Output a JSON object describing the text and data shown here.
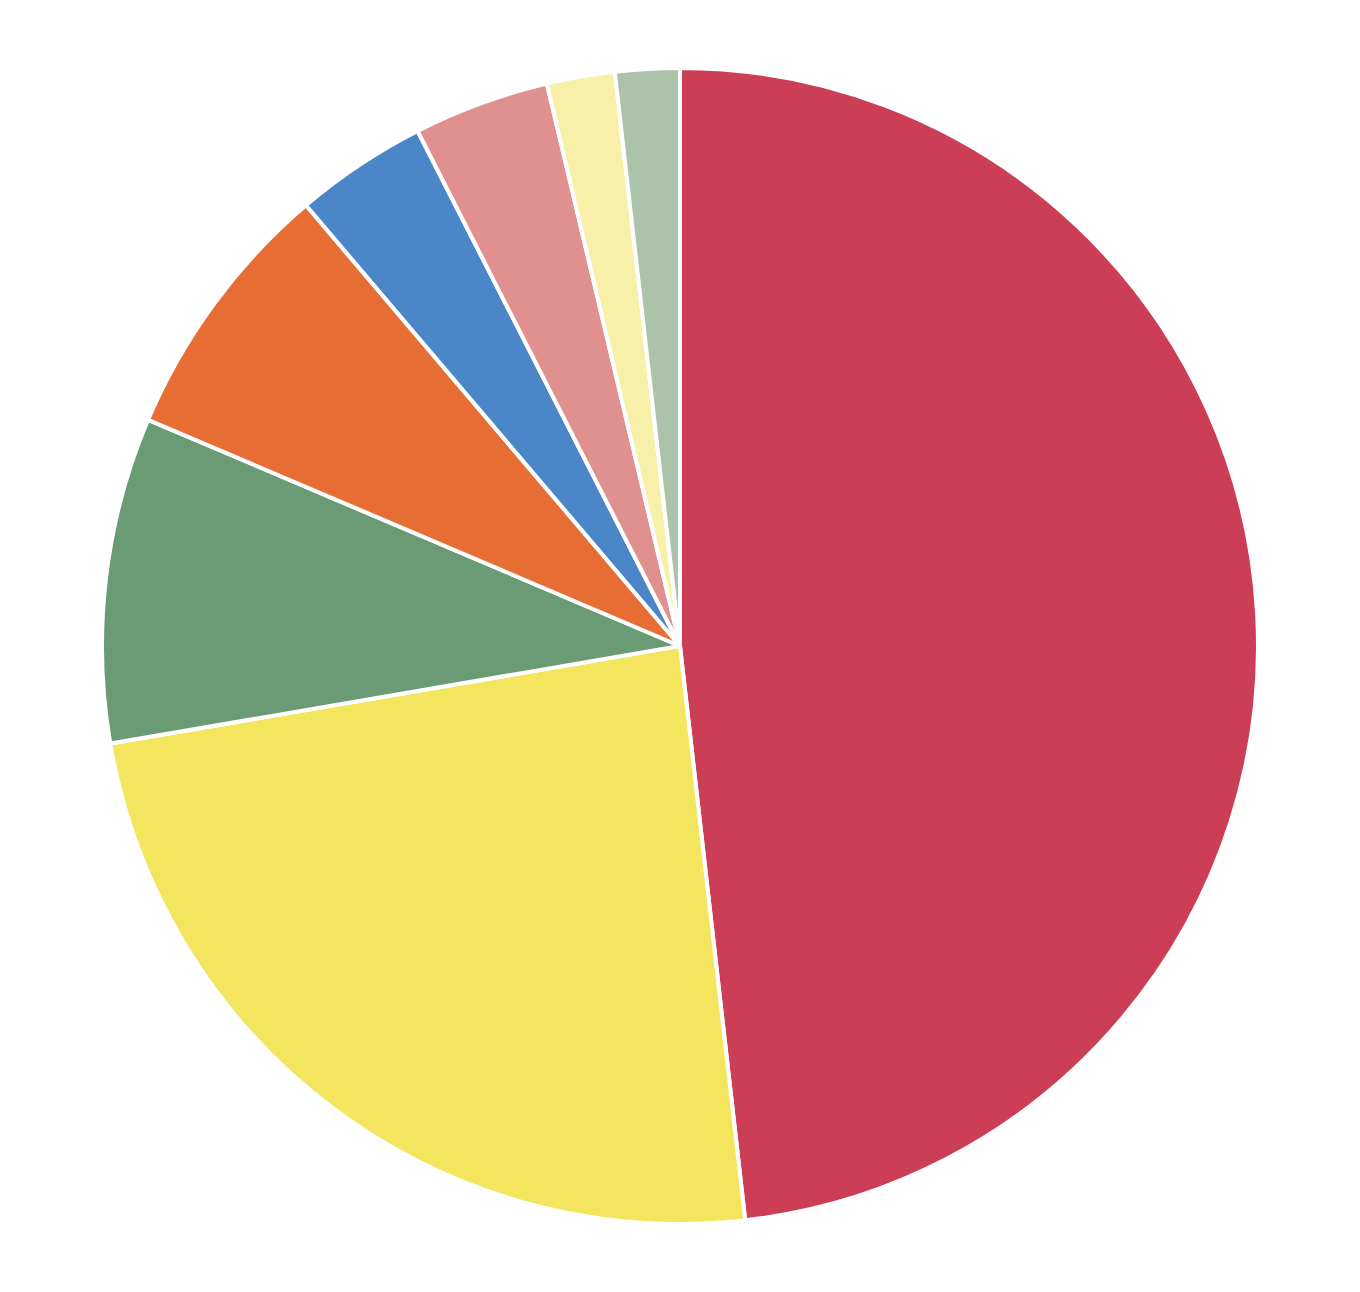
{
  "chart_data": {
    "type": "pie",
    "categories": [
      null,
      null,
      null,
      null,
      null,
      null,
      null,
      null
    ],
    "values": [
      48.2,
      24.1,
      9.1,
      7.4,
      3.7,
      3.8,
      1.9,
      1.8
    ],
    "colors": [
      "#cc3e55",
      "#f4e55f",
      "#6a9b74",
      "#e66e35",
      "#4a86c8",
      "#e0908e",
      "#f8f0a8",
      "#abc3a8"
    ]
  }
}
